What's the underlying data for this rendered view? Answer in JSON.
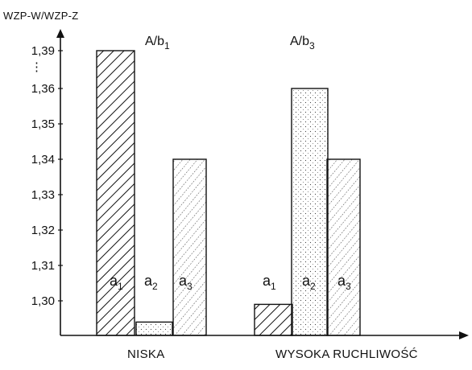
{
  "chart_data": {
    "type": "bar",
    "ylabel": "WZP-W/WZP-Z",
    "ytick_labels": [
      "1,30",
      "1,31",
      "1,32",
      "1,33",
      "1,34",
      "1,35",
      "1,36",
      "1,39"
    ],
    "y_break_marker": "⋮",
    "categories": [
      "NISKA",
      "WYSOKA RUCHLIWOŚĆ"
    ],
    "group_titles": [
      {
        "main": "A/b",
        "sub": "1"
      },
      {
        "main": "A/b",
        "sub": "3"
      }
    ],
    "series": [
      {
        "name": "a1",
        "label_main": "a",
        "label_sub": "1",
        "values": [
          1.39,
          1.299
        ],
        "pattern": "hatch"
      },
      {
        "name": "a2",
        "label_main": "a",
        "label_sub": "2",
        "values": [
          1.294,
          1.36
        ],
        "pattern": "dots"
      },
      {
        "name": "a3",
        "label_main": "a",
        "label_sub": "3",
        "values": [
          1.34,
          1.34
        ],
        "pattern": "hatch-dots"
      }
    ],
    "ylim": [
      1.29,
      1.39
    ],
    "grid": false
  }
}
